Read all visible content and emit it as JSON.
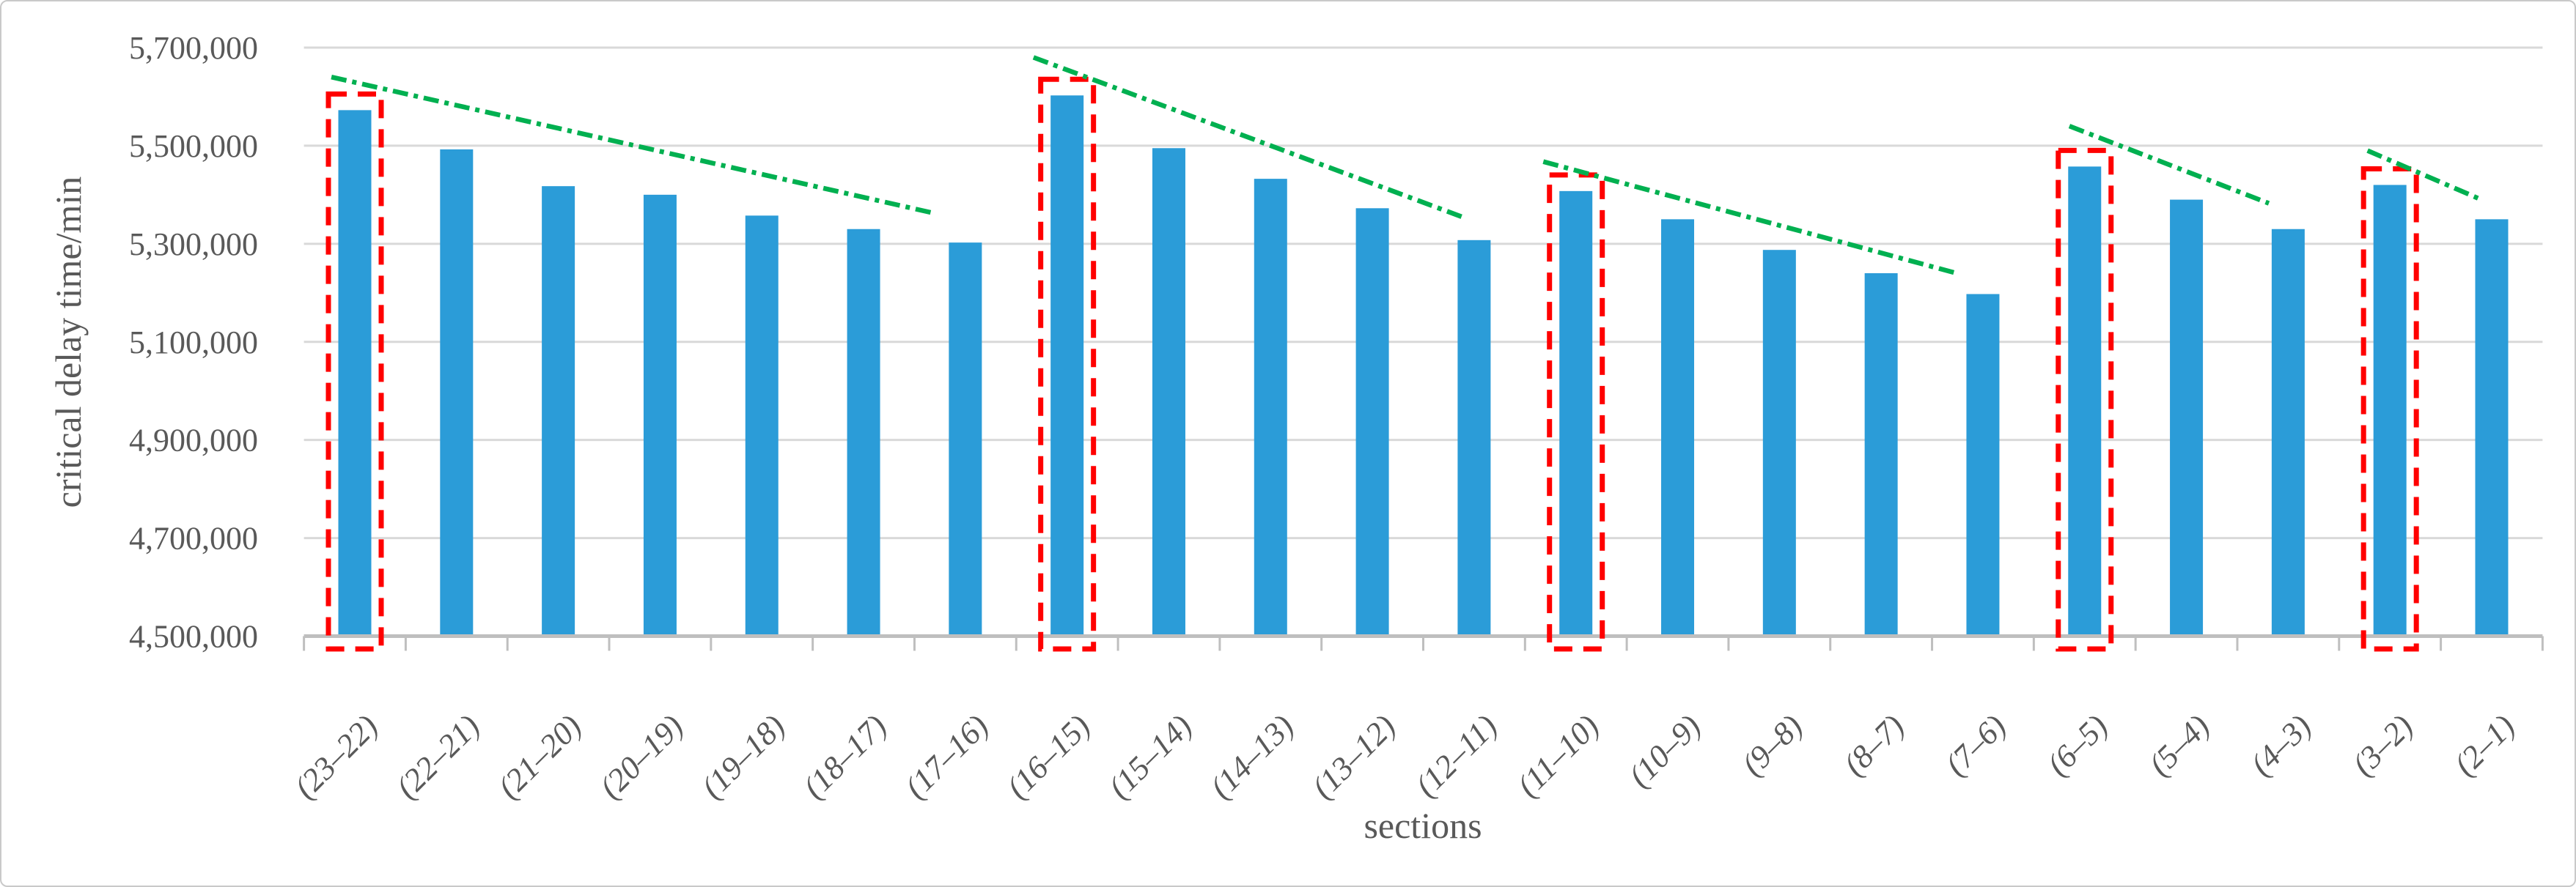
{
  "figure": {
    "background": "#FFFFFF",
    "border_color": "#C9C9C9"
  },
  "chart_data": {
    "type": "bar",
    "title": "",
    "xlabel": "sections",
    "ylabel": "critical delay time/min",
    "categories": [
      "(23–22)",
      "(22–21)",
      "(21–20)",
      "(20–19)",
      "(19–18)",
      "(18–17)",
      "(17–16)",
      "(16–15)",
      "(15–14)",
      "(14–13)",
      "(13–12)",
      "(12–11)",
      "(11–10)",
      "(10–9)",
      "(9–8)",
      "(8–7)",
      "(7–6)",
      "(6–5)",
      "(5–4)",
      "(4–3)",
      "(3–2)",
      "(2–1)"
    ],
    "values": [
      5572500,
      5492500,
      5417500,
      5400000,
      5357500,
      5330000,
      5302500,
      5602500,
      5495000,
      5432500,
      5372500,
      5307500,
      5407500,
      5350000,
      5287500,
      5240000,
      5197500,
      5457500,
      5390000,
      5330000,
      5420000,
      5350000
    ],
    "ylim": [
      4500000,
      5700000
    ],
    "ytick_step": 200000,
    "ytick_labels": [
      "4,500,000",
      "4,700,000",
      "4,900,000",
      "5,100,000",
      "5,300,000",
      "5,500,000",
      "5,700,000"
    ],
    "grid": true,
    "legend": false,
    "bar_color": "#2B9CD8",
    "text_color": "#595959",
    "gridline_color": "#D9D9D9",
    "axis_color": "#BFBFBF",
    "highlight_boxes": {
      "color": "#FF0000",
      "style": "dashed",
      "category_indices": [
        0,
        7,
        12,
        17,
        20
      ]
    },
    "trend_lines": {
      "color": "#00B050",
      "style": "dash-dot",
      "segments": [
        {
          "x1": -0.23,
          "y1": 5640000,
          "x2": 5.69,
          "y2": 5362500
        },
        {
          "x1": 6.67,
          "y1": 5680000,
          "x2": 10.88,
          "y2": 5355000
        },
        {
          "x1": 11.68,
          "y1": 5467500,
          "x2": 15.74,
          "y2": 5240000
        },
        {
          "x1": 16.85,
          "y1": 5540000,
          "x2": 18.81,
          "y2": 5382500
        },
        {
          "x1": 19.78,
          "y1": 5490000,
          "x2": 20.87,
          "y2": 5392500
        }
      ]
    }
  }
}
